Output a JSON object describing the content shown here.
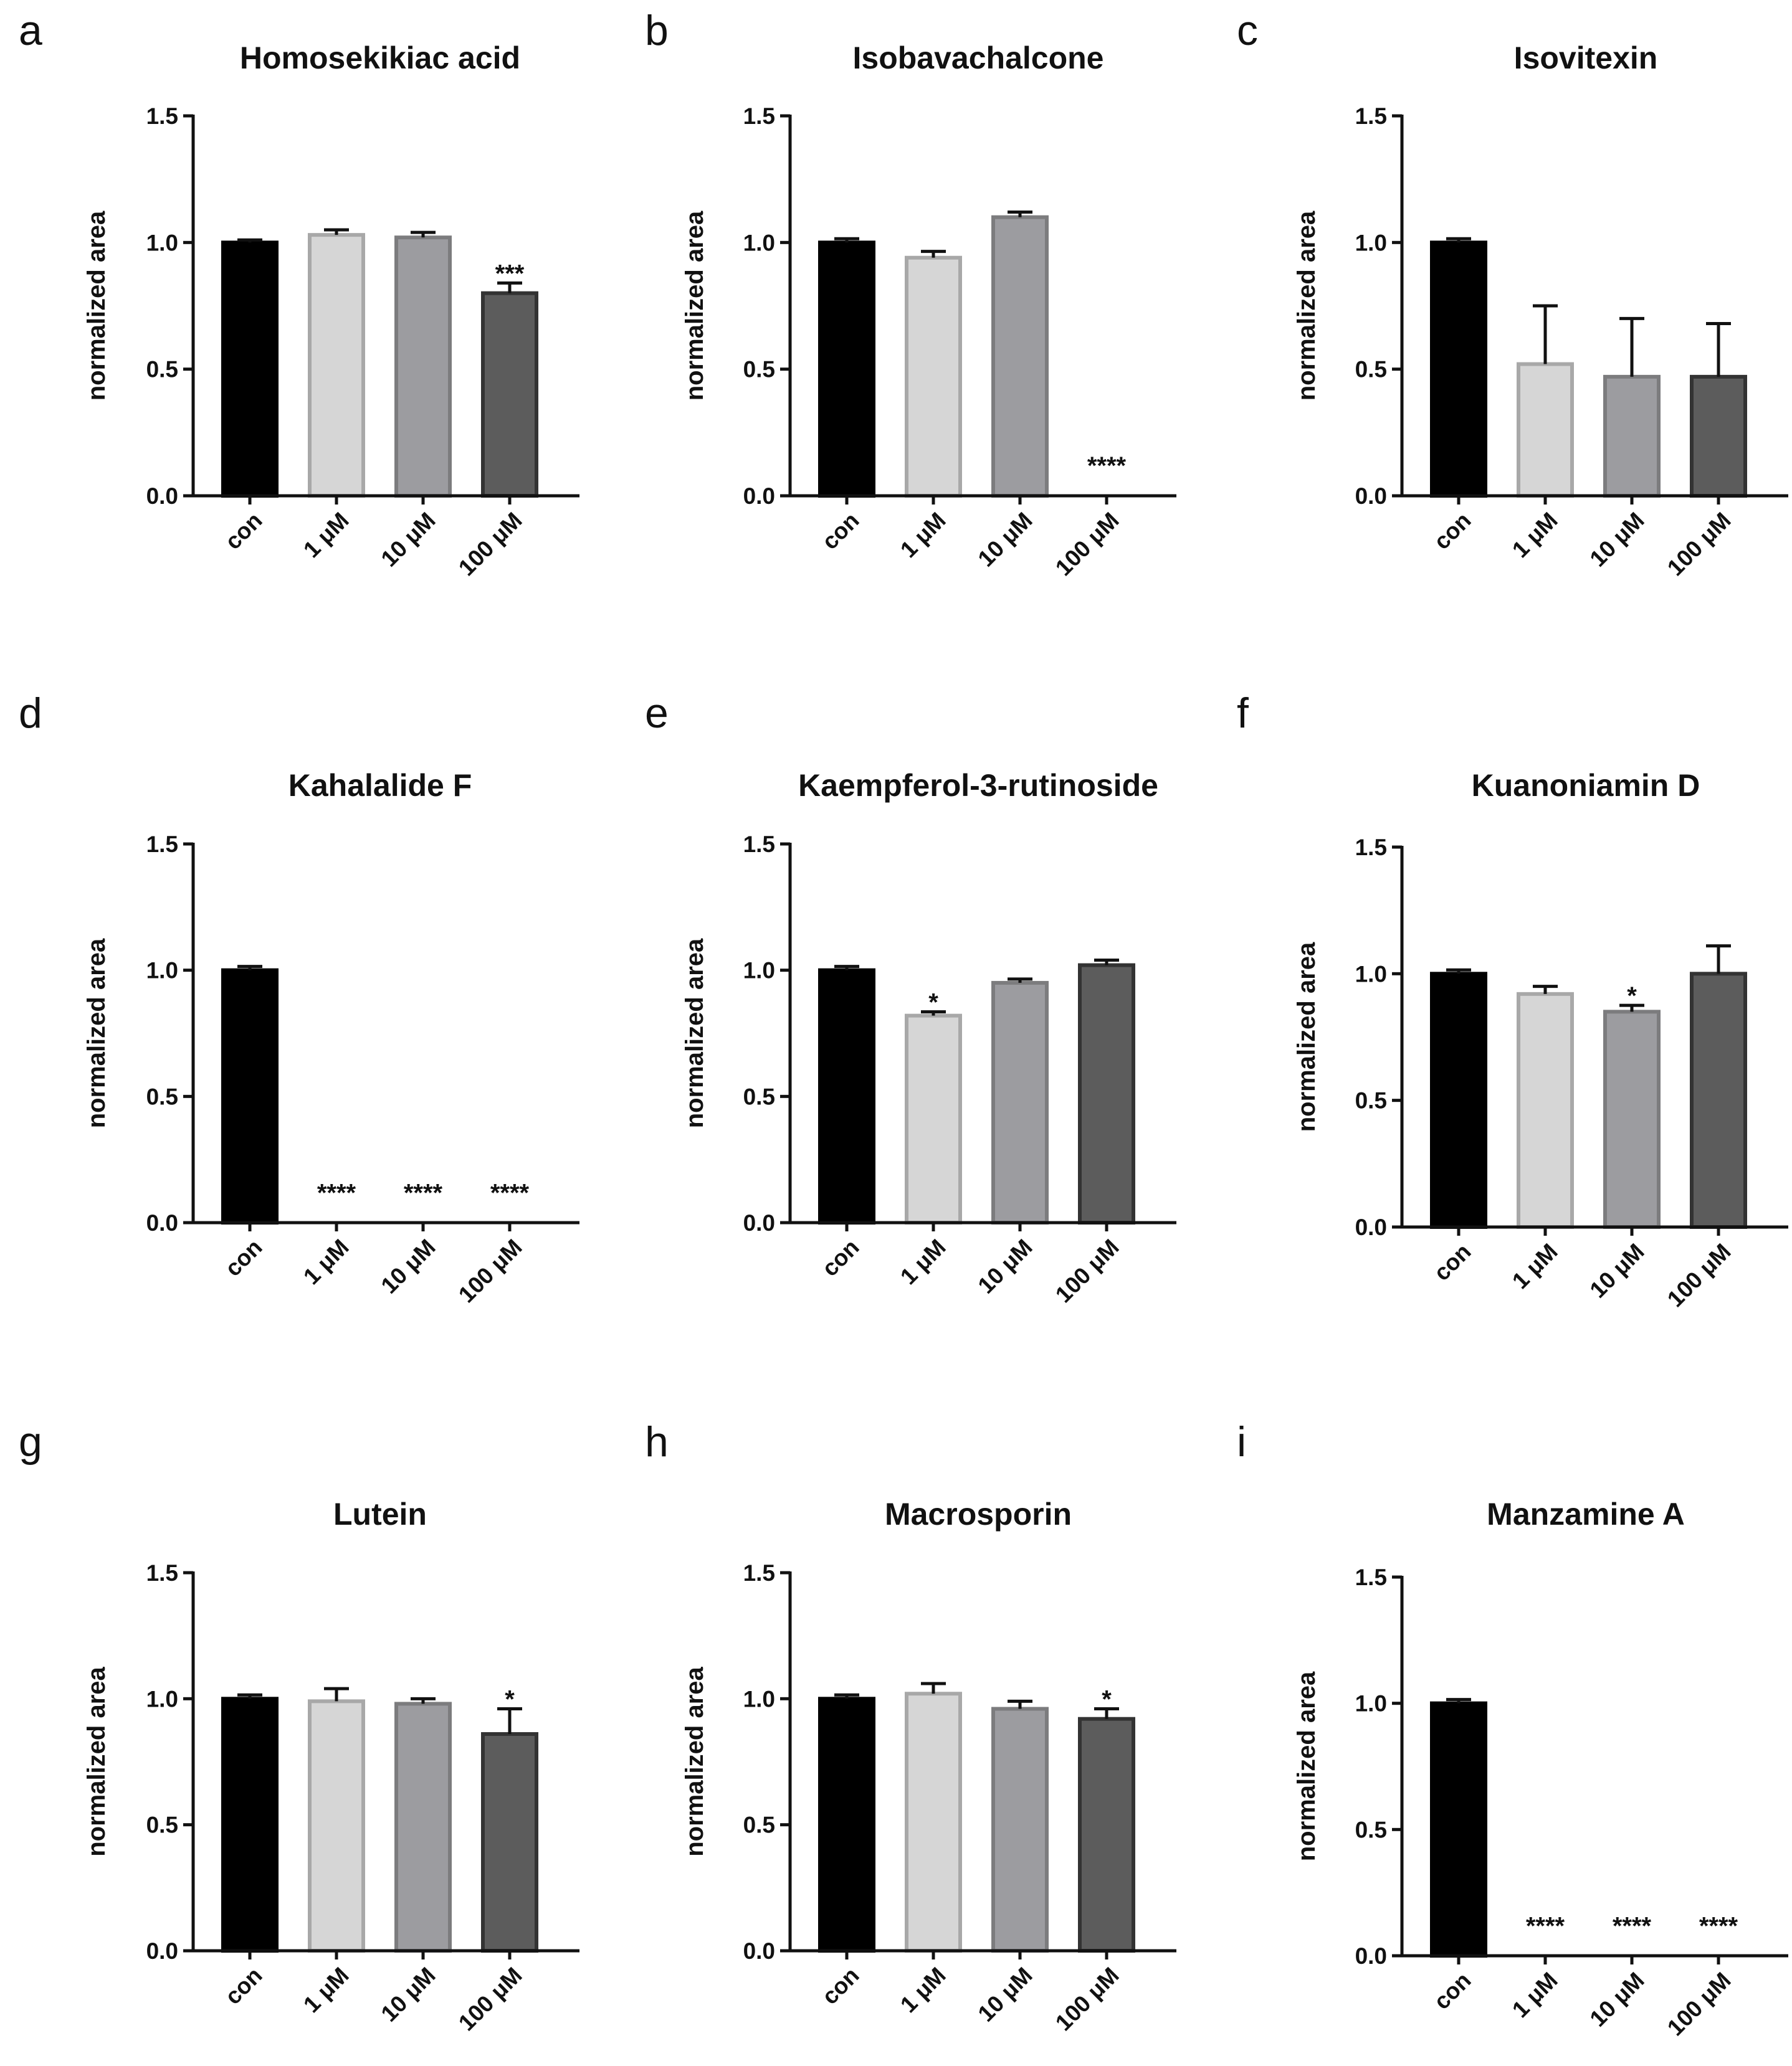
{
  "figure": {
    "bar_colors": [
      "#000000",
      "#d6d6d6",
      "#9c9ca0",
      "#5c5c5c"
    ],
    "bar_edge_colors": [
      "#000000",
      "#a8a8a8",
      "#7c7c7e",
      "#333333"
    ]
  },
  "chart_data": [
    {
      "panel": "a",
      "type": "bar",
      "title": "Homosekikiac acid",
      "xlabel": "",
      "ylabel": "normalized area",
      "ylim": [
        0,
        1.5
      ],
      "yticks": [
        "0.0",
        "0.5",
        "1.0",
        "1.5"
      ],
      "categories": [
        "con",
        "1 μM",
        "10 μM",
        "100 μM"
      ],
      "values": [
        1.0,
        1.03,
        1.02,
        0.8
      ],
      "errors": [
        0.01,
        0.02,
        0.02,
        0.04
      ],
      "significance": [
        "",
        "",
        "",
        "***"
      ]
    },
    {
      "panel": "b",
      "type": "bar",
      "title": "Isobavachalcone",
      "xlabel": "",
      "ylabel": "normalized area",
      "ylim": [
        0,
        1.5
      ],
      "yticks": [
        "0.0",
        "0.5",
        "1.0",
        "1.5"
      ],
      "categories": [
        "con",
        "1 μM",
        "10 μM",
        "100 μM"
      ],
      "values": [
        1.0,
        0.94,
        1.1,
        0.0
      ],
      "errors": [
        0.015,
        0.025,
        0.02,
        0.0
      ],
      "significance": [
        "",
        "",
        "",
        "****"
      ]
    },
    {
      "panel": "c",
      "type": "bar",
      "title": "Isovitexin",
      "xlabel": "",
      "ylabel": "normalized area",
      "ylim": [
        0,
        1.5
      ],
      "yticks": [
        "0.0",
        "0.5",
        "1.0",
        "1.5"
      ],
      "categories": [
        "con",
        "1 μM",
        "10 μM",
        "100 μM"
      ],
      "values": [
        1.0,
        0.52,
        0.47,
        0.47
      ],
      "errors": [
        0.015,
        0.23,
        0.23,
        0.21
      ],
      "significance": [
        "",
        "",
        "",
        ""
      ]
    },
    {
      "panel": "d",
      "type": "bar",
      "title": "Kahalalide F",
      "xlabel": "",
      "ylabel": "normalized area",
      "ylim": [
        0,
        1.5
      ],
      "yticks": [
        "0.0",
        "0.5",
        "1.0",
        "1.5"
      ],
      "categories": [
        "con",
        "1 μM",
        "10 μM",
        "100 μM"
      ],
      "values": [
        1.0,
        0.0,
        0.0,
        0.0
      ],
      "errors": [
        0.015,
        0.0,
        0.0,
        0.0
      ],
      "significance": [
        "",
        "****",
        "****",
        "****"
      ]
    },
    {
      "panel": "e",
      "type": "bar",
      "title": "Kaempferol-3-rutinoside",
      "xlabel": "",
      "ylabel": "normalized area",
      "ylim": [
        0,
        1.5
      ],
      "yticks": [
        "0.0",
        "0.5",
        "1.0",
        "1.5"
      ],
      "categories": [
        "con",
        "1 μM",
        "10 μM",
        "100 μM"
      ],
      "values": [
        1.0,
        0.82,
        0.95,
        1.02
      ],
      "errors": [
        0.015,
        0.015,
        0.015,
        0.02
      ],
      "significance": [
        "",
        "*",
        "",
        ""
      ]
    },
    {
      "panel": "f",
      "type": "bar",
      "title": "Kuanoniamin D",
      "xlabel": "",
      "ylabel": "normalized area",
      "ylim": [
        0,
        1.5
      ],
      "yticks": [
        "0.0",
        "0.5",
        "1.0",
        "1.5"
      ],
      "categories": [
        "con",
        "1 μM",
        "10 μM",
        "100 μM"
      ],
      "values": [
        1.0,
        0.92,
        0.85,
        1.0
      ],
      "errors": [
        0.015,
        0.03,
        0.025,
        0.11
      ],
      "significance": [
        "",
        "",
        "*",
        ""
      ]
    },
    {
      "panel": "g",
      "type": "bar",
      "title": "Lutein",
      "xlabel": "",
      "ylabel": "normalized area",
      "ylim": [
        0,
        1.5
      ],
      "yticks": [
        "0.0",
        "0.5",
        "1.0",
        "1.5"
      ],
      "categories": [
        "con",
        "1 μM",
        "10 μM",
        "100 μM"
      ],
      "values": [
        1.0,
        0.99,
        0.98,
        0.86
      ],
      "errors": [
        0.015,
        0.05,
        0.02,
        0.1
      ],
      "significance": [
        "",
        "",
        "",
        "*"
      ]
    },
    {
      "panel": "h",
      "type": "bar",
      "title": "Macrosporin",
      "xlabel": "",
      "ylabel": "normalized area",
      "ylim": [
        0,
        1.5
      ],
      "yticks": [
        "0.0",
        "0.5",
        "1.0",
        "1.5"
      ],
      "categories": [
        "con",
        "1 μM",
        "10 μM",
        "100 μM"
      ],
      "values": [
        1.0,
        1.02,
        0.96,
        0.92
      ],
      "errors": [
        0.015,
        0.04,
        0.03,
        0.04
      ],
      "significance": [
        "",
        "",
        "",
        "*"
      ]
    },
    {
      "panel": "i",
      "type": "bar",
      "title": "Manzamine A",
      "xlabel": "",
      "ylabel": "normalized area",
      "ylim": [
        0,
        1.5
      ],
      "yticks": [
        "0.0",
        "0.5",
        "1.0",
        "1.5"
      ],
      "categories": [
        "con",
        "1 μM",
        "10 μM",
        "100 μM"
      ],
      "values": [
        1.0,
        0.0,
        0.0,
        0.0
      ],
      "errors": [
        0.015,
        0.0,
        0.0,
        0.0
      ],
      "significance": [
        "",
        "****",
        "****",
        "****"
      ]
    }
  ]
}
